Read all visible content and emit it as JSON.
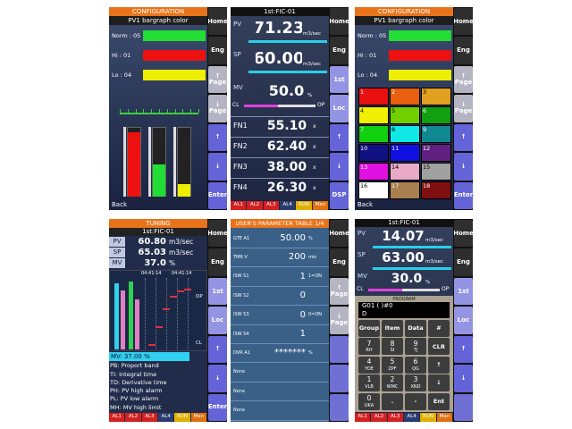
{
  "panels": [
    {
      "header": "CONFIGURATION",
      "subheader": "PV1 bargraph color",
      "rows": [
        {
          "label": "Norm : 05",
          "color": "#22dd33"
        },
        {
          "label": "Hi : 01",
          "color": "#ee1111"
        },
        {
          "label": "Lo : 04",
          "color": "#eeee00"
        }
      ],
      "footer": "Back",
      "buttons": [
        "Home",
        "Eng",
        "↑\nPage",
        "↓\nPage",
        "↑",
        "↓",
        "Enter"
      ]
    },
    {
      "title": "1st:FIC-01",
      "pv": {
        "label": "PV",
        "value": "71.23",
        "unit": "m3/sec"
      },
      "sp": {
        "label": "SP",
        "value": "60.00",
        "unit": "m3/sec"
      },
      "mv": {
        "label": "MV",
        "value": "50.0",
        "unit": "%"
      },
      "cl": "CL",
      "op": "OP",
      "functions": [
        {
          "label": "FN1",
          "value": "55.10",
          "unit": "x"
        },
        {
          "label": "FN2",
          "value": "62.40",
          "unit": "x"
        },
        {
          "label": "FN3",
          "value": "38.00",
          "unit": "x"
        },
        {
          "label": "FN4",
          "value": "26.30",
          "unit": "x"
        }
      ],
      "alarms": [
        "AL1",
        "AL2",
        "AL3",
        "AL4",
        "RUN",
        "Man"
      ],
      "buttons": [
        "Home",
        "Eng",
        "1st",
        "Loc",
        "↑",
        "↓",
        "DSP"
      ]
    },
    {
      "header": "CONFIGURATION",
      "subheader": "PV1 bargraph color",
      "rows": [
        {
          "label": "Norm : 05",
          "color": "#22dd33"
        },
        {
          "label": "Hi : 01",
          "color": "#ee1111"
        },
        {
          "label": "Lo : 04",
          "color": "#eeee00"
        }
      ],
      "palette": [
        {
          "label": "1",
          "color": "#e81010"
        },
        {
          "label": "2",
          "color": "#e86010"
        },
        {
          "label": "3",
          "color": "#e0a020"
        },
        {
          "label": "4",
          "color": "#f0f000"
        },
        {
          "label": "5",
          "color": "#70d000"
        },
        {
          "label": "6",
          "color": "#10a010"
        },
        {
          "label": "7",
          "color": "#10d010"
        },
        {
          "label": "8",
          "color": "#10e8e8"
        },
        {
          "label": "9",
          "color": "#108890"
        },
        {
          "label": "10",
          "color": "#101080"
        },
        {
          "label": "11",
          "color": "#1010e0"
        },
        {
          "label": "12",
          "color": "#602080"
        },
        {
          "label": "13",
          "color": "#e010e0"
        },
        {
          "label": "14",
          "color": "#e8a8c8"
        },
        {
          "label": "15",
          "color": "#a0a0a0"
        },
        {
          "label": "16",
          "color": "#ffffff"
        },
        {
          "label": "17",
          "color": "#a88050"
        },
        {
          "label": "18",
          "color": "#801010"
        }
      ],
      "footer": "Back",
      "buttons": [
        "Home",
        "Eng",
        "↑\nPage",
        "↓\nPage",
        "↑",
        "↓",
        "Enter"
      ]
    },
    {
      "header": "TUNING",
      "title": "1st:FIC-01",
      "pv": {
        "label": "PV",
        "value": "60.80",
        "unit": "m3/sec"
      },
      "sp": {
        "label": "SP",
        "value": "65.03",
        "unit": "m3/sec"
      },
      "mv": {
        "label": "MV",
        "value": "37.0",
        "unit": "%"
      },
      "times": [
        "04:41:14",
        "04:41:14"
      ],
      "op": "OP",
      "cl": "CL",
      "selected": "MV: 37.00 %",
      "list": [
        "PB: Proport band",
        "TI: Integral time",
        "TD: Derivative time",
        "PH: PV high alarm",
        "PL: PV low alarm",
        "MH: MV high limit"
      ],
      "alarms": [
        "AL1",
        "AL2",
        "AL3",
        "AL4",
        "RUN",
        "Man"
      ],
      "buttons": [
        "Home",
        "Eng",
        "1st",
        "Loc",
        "↑",
        "↓",
        "Enter"
      ]
    },
    {
      "header": "USER'S PARAMETER TABLE 1/4",
      "rows": [
        {
          "name": "GTE A1",
          "value": "50.00",
          "unit": "%"
        },
        {
          "name": "TMR V",
          "value": "200",
          "unit": "min"
        },
        {
          "name": "ISW S1",
          "value": "1",
          "unit": "1=ON"
        },
        {
          "name": "ISW S2",
          "value": "0"
        },
        {
          "name": "ISW S3",
          "value": "0",
          "unit": "0=ON"
        },
        {
          "name": "ISW S4",
          "value": "1"
        },
        {
          "name": "DVR A1",
          "value": "*******",
          "unit": "%"
        },
        {
          "name": "None"
        },
        {
          "name": "None"
        },
        {
          "name": "None"
        }
      ],
      "buttons": [
        "Home",
        "Eng",
        "↑\nPage",
        "↓\nPage"
      ]
    },
    {
      "title": "1st:FIC-01",
      "pv": {
        "label": "PV",
        "value": "14.07",
        "unit": "m3/sec"
      },
      "sp": {
        "label": "SP",
        "value": "63.00",
        "unit": "m3/sec"
      },
      "mv": {
        "label": "MV",
        "value": "30.0",
        "unit": "%"
      },
      "cl": "CL",
      "op": "OP",
      "program": {
        "label": "PROGRAM",
        "line1": "G01 (    )#0",
        "line2": "D"
      },
      "keys": [
        {
          "main": "Group"
        },
        {
          "main": "Item"
        },
        {
          "main": "Data"
        },
        {
          "main": "#"
        },
        {
          "main": "7",
          "sub": "RH"
        },
        {
          "main": "8",
          "sub": "SI"
        },
        {
          "main": "9",
          "sub": "TJ"
        },
        {
          "main": "CLR"
        },
        {
          "main": "4",
          "sub": "YOE"
        },
        {
          "main": "5",
          "sub": "ZPF"
        },
        {
          "main": "6",
          "sub": "QG"
        },
        {
          "main": "↑"
        },
        {
          "main": "1",
          "sub": "VLB"
        },
        {
          "main": "2",
          "sub": "WMC"
        },
        {
          "main": "3",
          "sub": "XND"
        },
        {
          "main": "↓"
        },
        {
          "main": "0",
          "sub": "UKA"
        },
        {
          "main": "."
        },
        {
          "main": "-"
        },
        {
          "main": "Ent"
        }
      ],
      "alarms": [
        "AL1",
        "AL2",
        "AL3",
        "AL4",
        "RUN",
        "Man"
      ],
      "buttons": [
        "Home",
        "Eng",
        "1st",
        "Loc",
        "↑",
        "↓"
      ]
    }
  ]
}
